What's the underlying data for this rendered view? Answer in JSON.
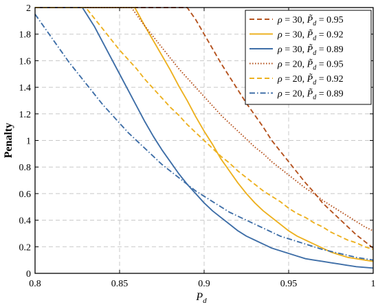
{
  "chart_data": {
    "type": "line",
    "xlabel": "P_d",
    "ylabel": "Penalty",
    "xlim": [
      0.8,
      1.0
    ],
    "ylim": [
      0,
      2.0
    ],
    "xticks": [
      0.8,
      0.85,
      0.9,
      0.95,
      1.0
    ],
    "xtick_labels": [
      "0.8",
      "0.85",
      "0.9",
      "0.95",
      "1"
    ],
    "yticks": [
      0,
      0.2,
      0.4,
      0.6,
      0.8,
      1.0,
      1.2,
      1.4,
      1.6,
      1.8,
      2.0
    ],
    "ytick_labels": [
      "0",
      "0.2",
      "0.4",
      "0.6",
      "0.8",
      "1",
      "1.2",
      "1.4",
      "1.6",
      "1.8",
      "2"
    ],
    "grid": true,
    "legend_position": "top-right",
    "series": [
      {
        "name": "ρ = 30, P̃_d = 0.95",
        "color": "#B5531F",
        "style": "dashed",
        "x": [
          0.8,
          0.89,
          0.895,
          0.9,
          0.905,
          0.91,
          0.915,
          0.92,
          0.925,
          0.93,
          0.935,
          0.94,
          0.945,
          0.95,
          0.955,
          0.96,
          0.965,
          0.97,
          0.975,
          0.98,
          0.985,
          0.99,
          0.995,
          1.0
        ],
        "y": [
          2.0,
          2.0,
          1.91,
          1.8,
          1.69,
          1.58,
          1.48,
          1.38,
          1.28,
          1.19,
          1.1,
          1.0,
          0.92,
          0.84,
          0.76,
          0.68,
          0.61,
          0.53,
          0.47,
          0.41,
          0.35,
          0.29,
          0.24,
          0.19
        ]
      },
      {
        "name": "ρ = 30, P̃_d = 0.92",
        "color": "#EDB120",
        "style": "solid",
        "x": [
          0.8,
          0.859,
          0.865,
          0.87,
          0.875,
          0.88,
          0.885,
          0.89,
          0.895,
          0.9,
          0.905,
          0.91,
          0.915,
          0.92,
          0.925,
          0.93,
          0.935,
          0.94,
          0.945,
          0.95,
          0.955,
          0.96,
          0.965,
          0.97,
          0.975,
          0.98,
          0.985,
          0.99,
          0.995,
          1.0
        ],
        "y": [
          2.0,
          2.0,
          1.86,
          1.75,
          1.64,
          1.53,
          1.41,
          1.3,
          1.18,
          1.07,
          0.97,
          0.86,
          0.77,
          0.68,
          0.6,
          0.53,
          0.47,
          0.42,
          0.37,
          0.32,
          0.28,
          0.25,
          0.22,
          0.19,
          0.16,
          0.14,
          0.12,
          0.11,
          0.1,
          0.09
        ]
      },
      {
        "name": "ρ = 30, P̃_d = 0.89",
        "color": "#3E6EA7",
        "style": "solid",
        "x": [
          0.8,
          0.828,
          0.835,
          0.84,
          0.845,
          0.85,
          0.855,
          0.86,
          0.865,
          0.87,
          0.875,
          0.88,
          0.885,
          0.89,
          0.895,
          0.9,
          0.905,
          0.91,
          0.915,
          0.92,
          0.925,
          0.93,
          0.935,
          0.94,
          0.945,
          0.95,
          0.955,
          0.96,
          0.965,
          0.97,
          0.975,
          0.98,
          0.985,
          0.99,
          0.995,
          1.0
        ],
        "y": [
          2.0,
          2.0,
          1.86,
          1.74,
          1.62,
          1.5,
          1.38,
          1.26,
          1.14,
          1.03,
          0.93,
          0.84,
          0.75,
          0.67,
          0.6,
          0.53,
          0.47,
          0.42,
          0.37,
          0.32,
          0.28,
          0.25,
          0.22,
          0.19,
          0.17,
          0.15,
          0.13,
          0.11,
          0.1,
          0.09,
          0.08,
          0.07,
          0.06,
          0.05,
          0.045,
          0.04
        ]
      },
      {
        "name": "ρ = 20, P̃_d = 0.95",
        "color": "#B5531F",
        "style": "dotted",
        "x": [
          0.8,
          0.857,
          0.865,
          0.87,
          0.875,
          0.88,
          0.885,
          0.89,
          0.895,
          0.9,
          0.905,
          0.91,
          0.915,
          0.92,
          0.925,
          0.93,
          0.935,
          0.94,
          0.945,
          0.95,
          0.955,
          0.96,
          0.965,
          0.97,
          0.975,
          0.98,
          0.985,
          0.99,
          0.995,
          1.0
        ],
        "y": [
          2.0,
          2.0,
          1.86,
          1.78,
          1.7,
          1.62,
          1.54,
          1.47,
          1.4,
          1.33,
          1.26,
          1.19,
          1.13,
          1.07,
          1.01,
          0.95,
          0.9,
          0.84,
          0.79,
          0.74,
          0.69,
          0.64,
          0.6,
          0.55,
          0.51,
          0.47,
          0.43,
          0.39,
          0.35,
          0.32
        ]
      },
      {
        "name": "ρ = 20, P̃_d = 0.92",
        "color": "#EDB120",
        "style": "dashed",
        "x": [
          0.8,
          0.83,
          0.835,
          0.84,
          0.845,
          0.85,
          0.855,
          0.86,
          0.865,
          0.87,
          0.875,
          0.88,
          0.885,
          0.89,
          0.895,
          0.9,
          0.905,
          0.91,
          0.915,
          0.92,
          0.925,
          0.93,
          0.935,
          0.94,
          0.945,
          0.95,
          0.955,
          0.96,
          0.965,
          0.97,
          0.975,
          0.98,
          0.985,
          0.99,
          0.995,
          1.0
        ],
        "y": [
          2.0,
          2.0,
          1.92,
          1.84,
          1.76,
          1.68,
          1.61,
          1.54,
          1.46,
          1.39,
          1.32,
          1.25,
          1.19,
          1.12,
          1.06,
          1.0,
          0.94,
          0.88,
          0.83,
          0.77,
          0.72,
          0.67,
          0.62,
          0.58,
          0.54,
          0.49,
          0.45,
          0.42,
          0.38,
          0.35,
          0.31,
          0.28,
          0.25,
          0.23,
          0.2,
          0.18
        ]
      },
      {
        "name": "ρ = 20, P̃_d = 0.89",
        "color": "#3E6EA7",
        "style": "dashdot",
        "x": [
          0.8,
          0.805,
          0.81,
          0.815,
          0.82,
          0.825,
          0.83,
          0.835,
          0.84,
          0.845,
          0.85,
          0.855,
          0.86,
          0.865,
          0.87,
          0.875,
          0.88,
          0.885,
          0.89,
          0.895,
          0.9,
          0.905,
          0.91,
          0.915,
          0.92,
          0.925,
          0.93,
          0.935,
          0.94,
          0.945,
          0.95,
          0.955,
          0.96,
          0.965,
          0.97,
          0.975,
          0.98,
          0.985,
          0.99,
          0.995,
          1.0
        ],
        "y": [
          1.95,
          1.86,
          1.77,
          1.68,
          1.59,
          1.51,
          1.43,
          1.35,
          1.27,
          1.2,
          1.13,
          1.06,
          1.0,
          0.94,
          0.88,
          0.82,
          0.77,
          0.72,
          0.67,
          0.62,
          0.58,
          0.54,
          0.5,
          0.46,
          0.43,
          0.4,
          0.37,
          0.34,
          0.31,
          0.28,
          0.26,
          0.24,
          0.22,
          0.2,
          0.18,
          0.165,
          0.15,
          0.135,
          0.12,
          0.11,
          0.1
        ]
      }
    ]
  }
}
